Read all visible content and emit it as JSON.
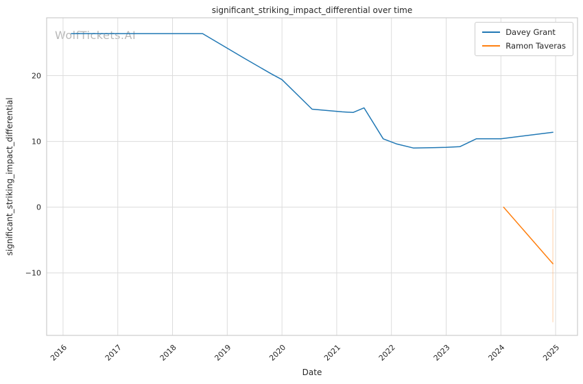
{
  "watermark": "WolfTickets.AI",
  "chart_data": {
    "type": "line",
    "title": "significant_striking_impact_differential over time",
    "xlabel": "Date",
    "ylabel": "significant_striking_impact_differential",
    "xlim": [
      2015.7,
      2025.4
    ],
    "ylim": [
      -19.5,
      28.8
    ],
    "x_ticks": [
      2016,
      2017,
      2018,
      2019,
      2020,
      2021,
      2022,
      2023,
      2024,
      2025
    ],
    "y_ticks": [
      {
        "value": -10,
        "label": "−10"
      },
      {
        "value": 0,
        "label": "0"
      },
      {
        "value": 10,
        "label": "10"
      },
      {
        "value": 20,
        "label": "20"
      }
    ],
    "grid": true,
    "legend_position": "upper right",
    "series": [
      {
        "name": "Davey Grant",
        "color": "#1f77b4",
        "points": [
          [
            2016.15,
            26.4
          ],
          [
            2018.55,
            26.4
          ],
          [
            2019.3,
            22.7
          ],
          [
            2019.8,
            20.3
          ],
          [
            2020.0,
            19.4
          ],
          [
            2020.55,
            14.9
          ],
          [
            2021.1,
            14.5
          ],
          [
            2021.3,
            14.4
          ],
          [
            2021.5,
            15.1
          ],
          [
            2021.85,
            10.4
          ],
          [
            2022.1,
            9.6
          ],
          [
            2022.4,
            9.0
          ],
          [
            2023.0,
            9.1
          ],
          [
            2023.25,
            9.2
          ],
          [
            2023.55,
            10.4
          ],
          [
            2024.0,
            10.4
          ],
          [
            2024.95,
            11.4
          ]
        ]
      },
      {
        "name": "Ramon Taveras",
        "color": "#ff7f0e",
        "points": [
          [
            2024.05,
            0.0
          ],
          [
            2024.95,
            -8.6
          ]
        ]
      }
    ],
    "annotations": [
      {
        "type": "vline_segment",
        "x": 2024.95,
        "y_from": -0.3,
        "y_to": -17.5,
        "color": "#ff7f0e",
        "opacity": 0.3
      }
    ]
  }
}
